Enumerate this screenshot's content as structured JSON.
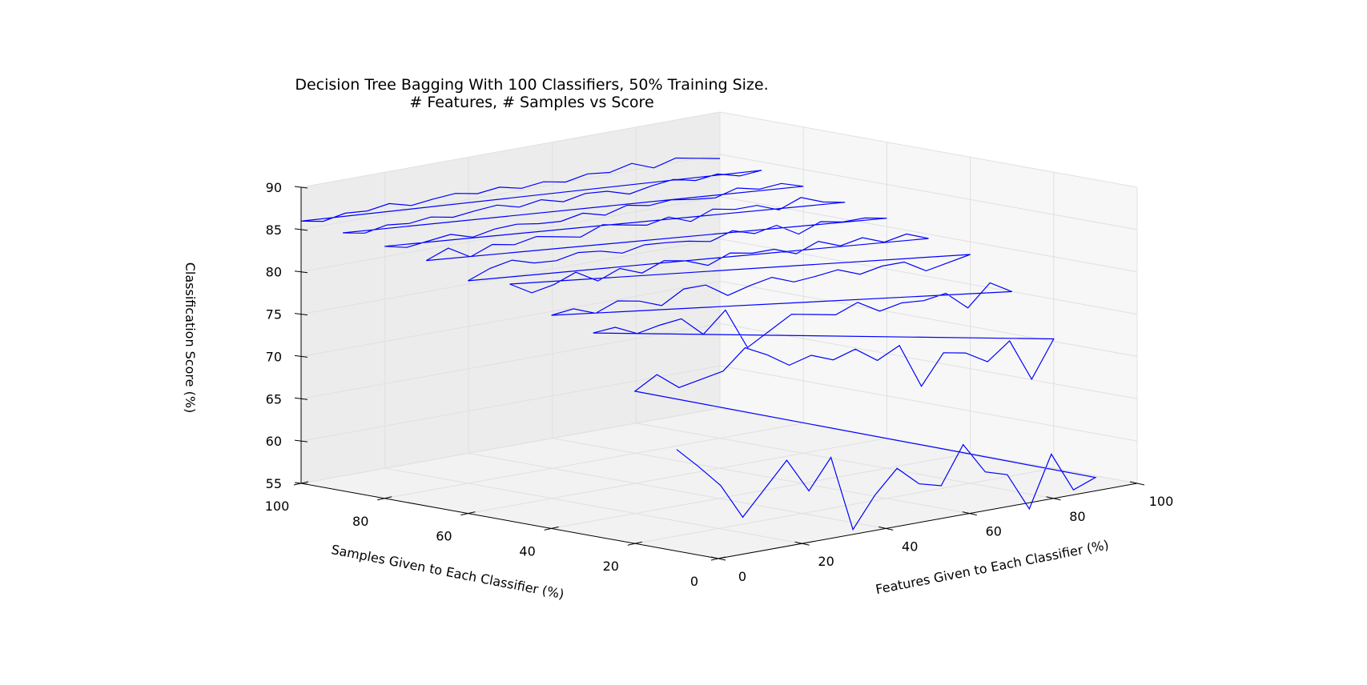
{
  "chart_data": {
    "type": "line",
    "projection": "3d",
    "title": "Decision Tree Bagging With 100 Classifiers, 50% Training Size.",
    "subtitle": "# Features, # Samples vs Score",
    "xlabel": "Features Given to Each Classifier (%)",
    "ylabel": "Samples Given to Each Classifier (%)",
    "zlabel": "Classification Score (%)",
    "xlim": [
      0,
      100
    ],
    "ylim": [
      0,
      100
    ],
    "zlim": [
      55,
      90
    ],
    "x_ticks": [
      0,
      20,
      40,
      60,
      80,
      100
    ],
    "y_ticks": [
      0,
      20,
      40,
      60,
      80,
      100
    ],
    "z_ticks": [
      55,
      60,
      65,
      70,
      75,
      80,
      85,
      90
    ],
    "x_tick_labels": [
      "0",
      "20",
      "40",
      "60",
      "80",
      "100"
    ],
    "y_tick_labels": [
      "0",
      "20",
      "40",
      "60",
      "80",
      "100"
    ],
    "z_tick_labels": [
      "55",
      "60",
      "65",
      "70",
      "75",
      "80",
      "85",
      "90"
    ],
    "grid": true,
    "line_color": "#0000ff",
    "series": [
      {
        "y": 10,
        "z": [
          67.0,
          64.5,
          61.8,
          57.6,
          60.5,
          63.4,
          59.3,
          62.8,
          53.8,
          57.4,
          60.1,
          57.8,
          57.1,
          61.5,
          57.8,
          57.0,
          52.5,
          58.5,
          53.8,
          54.8
        ]
      },
      {
        "y": 20,
        "z": [
          73.0,
          74.5,
          72.5,
          73.0,
          73.5,
          75.8,
          74.5,
          72.8,
          73.5,
          72.5,
          73.3,
          71.5,
          72.8,
          67.5,
          71.0,
          70.5,
          69.0,
          71.0,
          66.0,
          70.3
        ]
      },
      {
        "y": 30,
        "z": [
          79.0,
          79.2,
          78.0,
          78.5,
          78.8,
          76.5,
          78.9,
          74.0,
          75.5,
          77.0,
          76.5,
          76.0,
          77.0,
          75.5,
          76.0,
          75.8,
          76.2,
          74.0,
          76.5,
          75.0
        ]
      },
      {
        "y": 40,
        "z": [
          80.2,
          80.5,
          79.5,
          80.5,
          80.0,
          79.0,
          80.5,
          80.5,
          78.8,
          79.5,
          80.0,
          79.0,
          79.2,
          79.5,
          78.5,
          79.0,
          79.0,
          77.5,
          78.0,
          78.5
        ]
      },
      {
        "y": 50,
        "z": [
          83.0,
          81.5,
          82.0,
          83.0,
          81.5,
          82.5,
          81.5,
          82.5,
          82.0,
          81.0,
          82.0,
          81.5,
          81.5,
          80.5,
          81.5,
          80.5,
          81.0,
          80.0,
          80.5,
          79.5
        ]
      },
      {
        "y": 60,
        "z": [
          82.5,
          83.5,
          84.0,
          83.2,
          83.0,
          83.5,
          83.2,
          82.5,
          83.0,
          82.8,
          82.5,
          82.0,
          82.8,
          82.0,
          82.5,
          81.0,
          82.0,
          81.5,
          81.5,
          81.0
        ]
      },
      {
        "y": 70,
        "z": [
          84.0,
          85.0,
          83.5,
          84.5,
          84.0,
          84.5,
          84.0,
          83.5,
          84.5,
          84.0,
          83.5,
          84.0,
          83.0,
          84.0,
          83.5,
          83.5,
          82.5,
          83.5,
          82.5,
          82.0
        ]
      },
      {
        "y": 80,
        "z": [
          84.8,
          84.2,
          84.5,
          84.8,
          84.0,
          84.5,
          84.6,
          84.2,
          84.0,
          84.5,
          83.8,
          84.5,
          84.0,
          84.2,
          83.8,
          83.5,
          84.2,
          83.6,
          83.8,
          83.0
        ]
      },
      {
        "y": 90,
        "z": [
          85.5,
          85.0,
          85.5,
          85.2,
          85.5,
          85.0,
          85.3,
          85.5,
          84.8,
          85.2,
          84.5,
          85.0,
          84.8,
          84.0,
          84.5,
          84.8,
          84.2,
          84.5,
          83.8,
          84.0
        ]
      },
      {
        "y": 100,
        "z": [
          86.0,
          85.5,
          86.0,
          85.8,
          86.2,
          85.5,
          85.8,
          86.0,
          85.5,
          85.8,
          85.2,
          85.5,
          85.0,
          85.5,
          85.2,
          85.8,
          84.8,
          85.5,
          85.0,
          84.5
        ]
      }
    ]
  }
}
